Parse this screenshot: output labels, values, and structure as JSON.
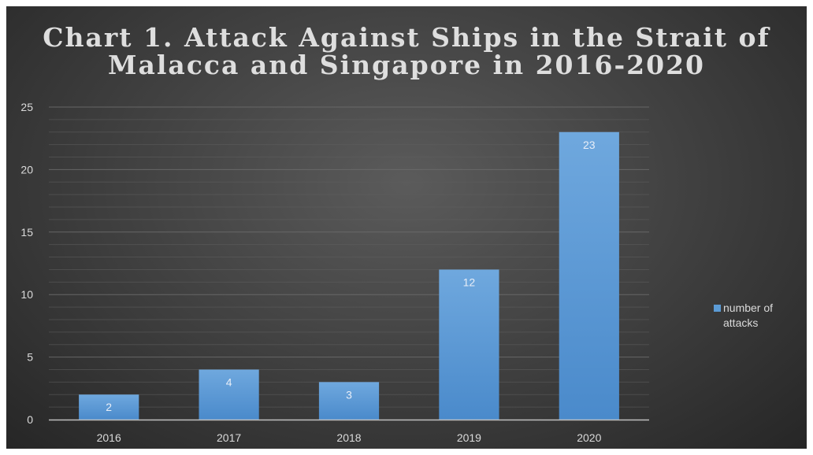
{
  "chart_data": {
    "type": "bar",
    "title_lines": [
      "Chart 1. Attack Against Ships in the Strait of",
      "Malacca and Singapore in 2016-2020"
    ],
    "categories": [
      "2016",
      "2017",
      "2018",
      "2019",
      "2020"
    ],
    "series": [
      {
        "name": "number of attacks",
        "values": [
          2,
          4,
          3,
          12,
          23
        ]
      }
    ],
    "ylim": [
      0,
      25
    ],
    "yticks": [
      0,
      5,
      10,
      15,
      20,
      25
    ],
    "xlabel": "",
    "ylabel": "",
    "grid": true,
    "legend_position": "right",
    "colors": {
      "bar": "#5b9bd5",
      "bar_top": "#6fa8de",
      "bar_bottom": "#4a8acb",
      "gridline": "#5e5e5e",
      "axis": "#bfbfbf"
    }
  }
}
